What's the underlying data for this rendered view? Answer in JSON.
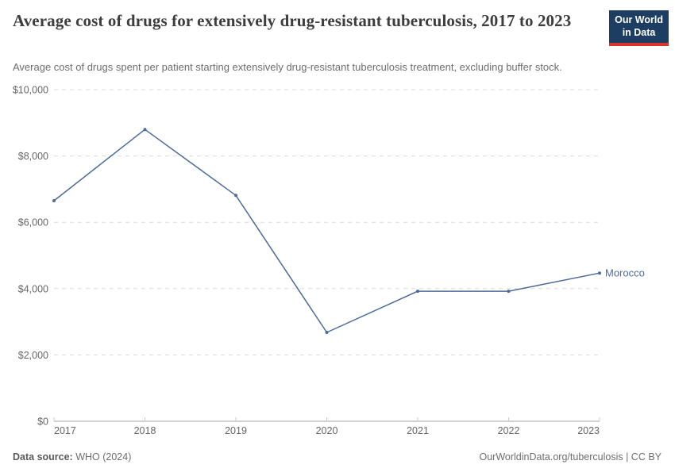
{
  "header": {
    "title": "Average cost of drugs for extensively drug-resistant tuberculosis, 2017 to 2023",
    "subtitle": "Average cost of drugs spent per patient starting extensively drug-resistant tuberculosis treatment, excluding buffer stock.",
    "logo": {
      "line1": "Our World",
      "line2": "in Data"
    }
  },
  "footer": {
    "source_label": "Data source:",
    "source_value": "WHO (2024)",
    "credit": "OurWorldinData.org/tuberculosis | CC BY"
  },
  "colors": {
    "series_blue": "#4c6a9c",
    "logo_navy": "#1d3d63",
    "logo_red": "#d8352a",
    "gridline": "#dcdcdc",
    "axis_line": "#a3a3a3",
    "tick_label": "#666666"
  },
  "chart_data": {
    "type": "line",
    "title": "Average cost of drugs for extensively drug-resistant tuberculosis, 2017 to 2023",
    "xlabel": "",
    "ylabel": "",
    "x": [
      2017,
      2018,
      2019,
      2020,
      2021,
      2022,
      2023
    ],
    "xtick_labels": [
      "2017",
      "2018",
      "2019",
      "2020",
      "2021",
      "2022",
      "2023"
    ],
    "series": [
      {
        "name": "Morocco",
        "color": "#4c6a9c",
        "values": [
          6650,
          8800,
          6810,
          2680,
          3920,
          3920,
          4470
        ]
      }
    ],
    "ylim": [
      0,
      10000
    ],
    "ytick_interval": 2000,
    "ytick_labels": [
      "$0",
      "$2,000",
      "$4,000",
      "$6,000",
      "$8,000",
      "$10,000"
    ],
    "grid": "horizontal-dashed",
    "legend_position": "end-of-line-label"
  }
}
